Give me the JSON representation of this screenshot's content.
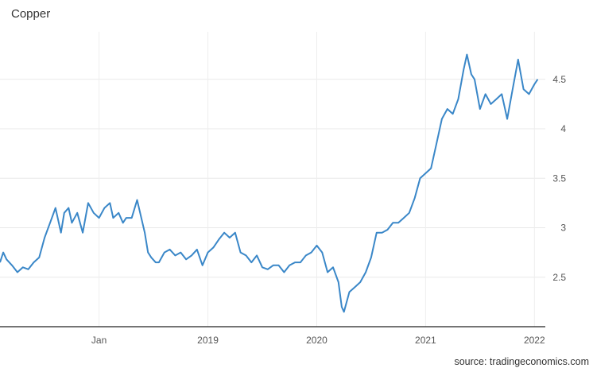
{
  "chart_data": {
    "type": "line",
    "title": "Copper",
    "source": "source: tradingeconomics.com",
    "xlabel": "",
    "ylabel": "",
    "x_ticks": [
      "Jan",
      "2019",
      "2020",
      "2021",
      "2022"
    ],
    "x_tick_values": [
      2018.0,
      2019.0,
      2020.0,
      2021.0,
      2022.0
    ],
    "y_ticks": [
      "2.5",
      "3",
      "3.5",
      "4",
      "4.5"
    ],
    "y_tick_values": [
      2.5,
      3,
      3.5,
      4,
      4.5
    ],
    "xlim": [
      2017.09,
      2022.1
    ],
    "ylim": [
      2.0,
      4.98
    ],
    "grid": true,
    "line_color": "#3a87c8",
    "series": [
      {
        "x": [
          2017.09,
          2017.12,
          2017.15,
          2017.2,
          2017.25,
          2017.3,
          2017.35,
          2017.4,
          2017.45,
          2017.5,
          2017.55,
          2017.6,
          2017.65,
          2017.68,
          2017.72,
          2017.75,
          2017.8,
          2017.85,
          2017.9,
          2017.95,
          2018.0,
          2018.05,
          2018.1,
          2018.13,
          2018.18,
          2018.22,
          2018.25,
          2018.3,
          2018.35,
          2018.42,
          2018.45,
          2018.48,
          2018.52,
          2018.55,
          2018.6,
          2018.65,
          2018.7,
          2018.75,
          2018.8,
          2018.85,
          2018.9,
          2018.95,
          2019.0,
          2019.05,
          2019.1,
          2019.15,
          2019.2,
          2019.25,
          2019.3,
          2019.35,
          2019.4,
          2019.45,
          2019.5,
          2019.55,
          2019.6,
          2019.65,
          2019.7,
          2019.75,
          2019.8,
          2019.85,
          2019.9,
          2019.95,
          2020.0,
          2020.05,
          2020.1,
          2020.15,
          2020.2,
          2020.23,
          2020.25,
          2020.3,
          2020.35,
          2020.4,
          2020.45,
          2020.5,
          2020.55,
          2020.6,
          2020.65,
          2020.7,
          2020.75,
          2020.8,
          2020.85,
          2020.9,
          2020.95,
          2021.0,
          2021.05,
          2021.1,
          2021.15,
          2021.2,
          2021.25,
          2021.3,
          2021.35,
          2021.38,
          2021.42,
          2021.45,
          2021.5,
          2021.55,
          2021.6,
          2021.65,
          2021.7,
          2021.75,
          2021.8,
          2021.85,
          2021.9,
          2021.95,
          2022.0,
          2022.03
        ],
        "values": [
          2.65,
          2.75,
          2.68,
          2.62,
          2.55,
          2.6,
          2.58,
          2.65,
          2.7,
          2.9,
          3.05,
          3.2,
          2.95,
          3.15,
          3.2,
          3.05,
          3.15,
          2.95,
          3.25,
          3.15,
          3.1,
          3.2,
          3.25,
          3.1,
          3.15,
          3.05,
          3.1,
          3.1,
          3.28,
          2.95,
          2.75,
          2.7,
          2.65,
          2.65,
          2.75,
          2.78,
          2.72,
          2.75,
          2.68,
          2.72,
          2.78,
          2.62,
          2.75,
          2.8,
          2.88,
          2.95,
          2.9,
          2.95,
          2.75,
          2.72,
          2.65,
          2.72,
          2.6,
          2.58,
          2.62,
          2.62,
          2.55,
          2.62,
          2.65,
          2.65,
          2.72,
          2.75,
          2.82,
          2.75,
          2.55,
          2.6,
          2.45,
          2.2,
          2.15,
          2.35,
          2.4,
          2.45,
          2.55,
          2.7,
          2.95,
          2.95,
          2.98,
          3.05,
          3.05,
          3.1,
          3.15,
          3.3,
          3.5,
          3.55,
          3.6,
          3.85,
          4.1,
          4.2,
          4.15,
          4.3,
          4.6,
          4.75,
          4.55,
          4.5,
          4.2,
          4.35,
          4.25,
          4.3,
          4.35,
          4.1,
          4.4,
          4.7,
          4.4,
          4.35,
          4.45,
          4.5
        ]
      }
    ]
  }
}
